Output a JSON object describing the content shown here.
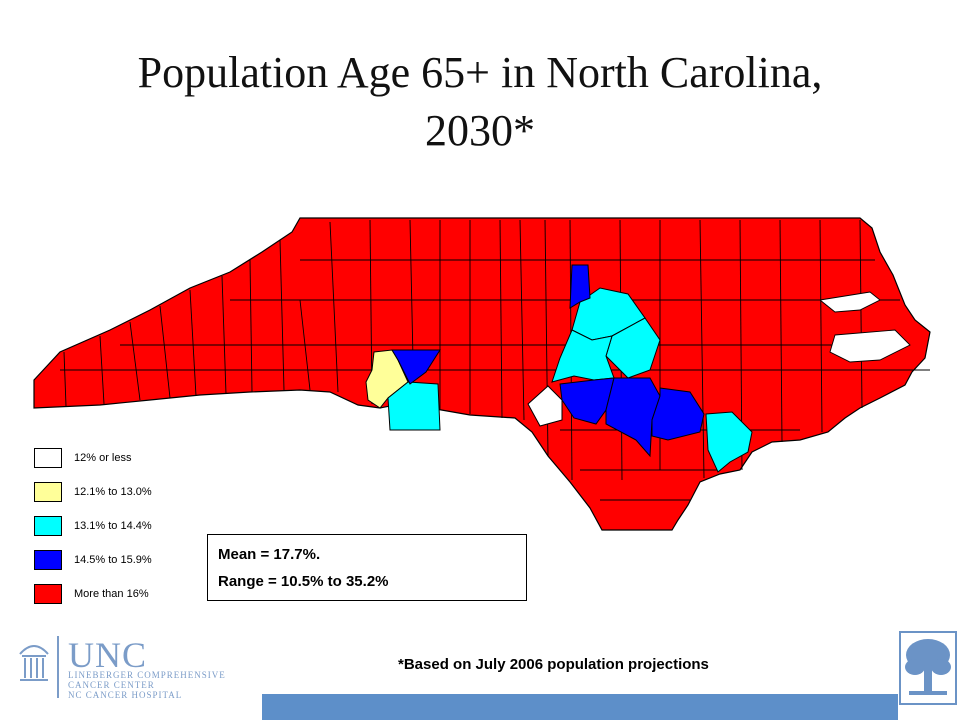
{
  "title_line1": "Population Age 65+ in North Carolina,",
  "title_line2": "2030*",
  "legend": [
    {
      "label": "12% or less",
      "color": "#ffffff"
    },
    {
      "label": "12.1% to 13.0%",
      "color": "#ffff99"
    },
    {
      "label": "13.1% to 14.4%",
      "color": "#00ffff"
    },
    {
      "label": "14.5% to 15.9%",
      "color": "#0000ff"
    },
    {
      "label": "More than 16%",
      "color": "#ff0000"
    }
  ],
  "stats": {
    "mean": "Mean = 17.7%.",
    "range": "Range = 10.5% to 35.2%"
  },
  "footnote": "*Based on July 2006 population projections",
  "logo": {
    "name": "UNC",
    "line1": "LINEBERGER COMPREHENSIVE",
    "line2": "CANCER CENTER",
    "line3": "NC CANCER HOSPITAL"
  },
  "colors": {
    "high": "#ff0000",
    "mid_high": "#0000ff",
    "mid": "#00ffff",
    "low_mid": "#ffff99",
    "low": "#ffffff",
    "bar": "#5d8fc9"
  }
}
